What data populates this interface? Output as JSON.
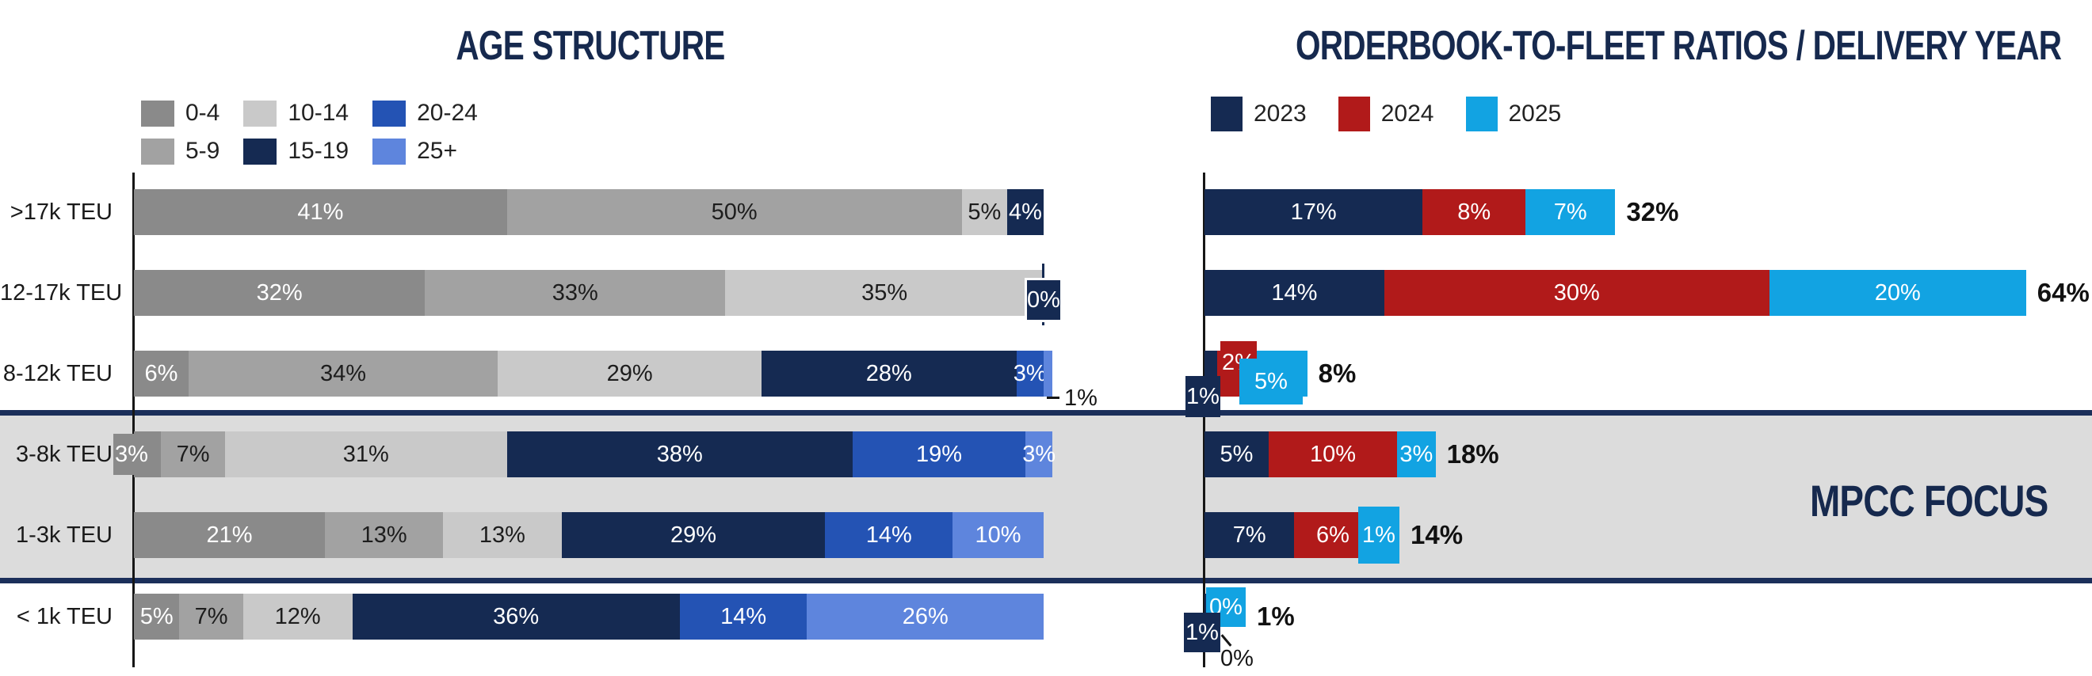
{
  "page": {
    "background": "#ffffff"
  },
  "mpcc_focus": {
    "label": "MPCC FOCUS",
    "band_color": "#dcdcdc",
    "line_color": "#1b2f5a",
    "text_color": "#16294e"
  },
  "chart_data": [
    {
      "id": "age_structure",
      "type": "bar",
      "subtype": "horizontal_stacked_percent",
      "title": "AGE STRUCTURE",
      "unit": "%",
      "axis_color": "#161616",
      "legend_position": "top-left",
      "categories": [
        ">17k TEU",
        "12-17k TEU",
        "8-12k TEU",
        "3-8k TEU",
        "1-3k TEU",
        "< 1k TEU"
      ],
      "series": [
        {
          "name": "0-4",
          "color": "#8a8a8a",
          "label_color": "#ffffff",
          "values": [
            41,
            32,
            6,
            3,
            21,
            5
          ]
        },
        {
          "name": "5-9",
          "color": "#a2a2a2",
          "label_color": "#1d1d1d",
          "values": [
            50,
            33,
            34,
            7,
            13,
            7
          ]
        },
        {
          "name": "10-14",
          "color": "#c9c9c9",
          "label_color": "#1d1d1d",
          "values": [
            5,
            35,
            29,
            31,
            13,
            12
          ]
        },
        {
          "name": "15-19",
          "color": "#152a52",
          "label_color": "#ffffff",
          "values": [
            4,
            0,
            28,
            38,
            29,
            36
          ]
        },
        {
          "name": "20-24",
          "color": "#2453b4",
          "label_color": "#ffffff",
          "values": [
            0,
            0,
            3,
            19,
            14,
            14
          ]
        },
        {
          "name": "25+",
          "color": "#5e85dd",
          "label_color": "#ffffff",
          "values": [
            0,
            0,
            1,
            3,
            10,
            26
          ]
        }
      ],
      "special_labels": [
        {
          "category": "12-17k TEU",
          "series": "15-19",
          "text": "0%",
          "style": "boxed-bar-end"
        },
        {
          "category": "8-12k TEU",
          "series": "25+",
          "text": "1%",
          "style": "outside-end-below"
        },
        {
          "category": "3-8k TEU",
          "series": "0-4",
          "text": "3%",
          "style": "boxed-over-axis"
        }
      ]
    },
    {
      "id": "orderbook_to_fleet",
      "type": "bar",
      "subtype": "horizontal_stacked",
      "title": "ORDERBOOK-TO-FLEET RATIOS / DELIVERY YEAR",
      "unit": "%",
      "axis_color": "#161616",
      "legend_position": "top-left",
      "categories": [
        ">17k TEU",
        "12-17k TEU",
        "8-12k TEU",
        "3-8k TEU",
        "1-3k TEU",
        "< 1k TEU"
      ],
      "series": [
        {
          "name": "2023",
          "color": "#152a52",
          "label_color": "#ffffff",
          "values": [
            17,
            14,
            1,
            5,
            7,
            1
          ]
        },
        {
          "name": "2024",
          "color": "#b11a1a",
          "label_color": "#ffffff",
          "values": [
            8,
            30,
            2,
            10,
            6,
            0
          ]
        },
        {
          "name": "2025",
          "color": "#12a3e2",
          "label_color": "#ffffff",
          "values": [
            7,
            20,
            5,
            3,
            1,
            0
          ]
        }
      ],
      "totals": [
        "32%",
        "64%",
        "8%",
        "18%",
        "14%",
        "1%"
      ],
      "special_labels": [
        {
          "category": "8-12k TEU",
          "series": "2023",
          "text": "1%",
          "style": "boxed-below-axis"
        },
        {
          "category": "8-12k TEU",
          "series": "2024",
          "text": "2%",
          "style": "boxed-above"
        },
        {
          "category": "8-12k TEU",
          "series": "2025",
          "text": "5%",
          "style": "boxed-inline"
        },
        {
          "category": "1-3k TEU",
          "series": "2025",
          "text": "1%",
          "style": "boxed-inline-tall"
        },
        {
          "category": "< 1k TEU",
          "series": "2025",
          "text": "0%",
          "style": "boxed-above-axis"
        },
        {
          "category": "< 1k TEU",
          "series": "2023",
          "text": "1%",
          "style": "boxed-below-axis"
        },
        {
          "category": "< 1k TEU",
          "series": "2024",
          "text": "0%",
          "style": "outside-below-axis"
        }
      ]
    }
  ]
}
